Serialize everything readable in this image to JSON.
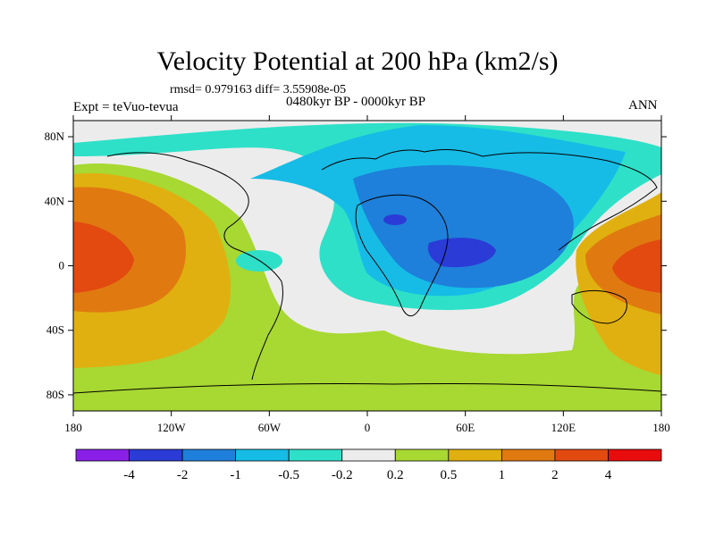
{
  "title": "Velocity Potential at 200 hPa (km2/s)",
  "stats": "rmsd= 0.979163 diff= 3.55908e-05",
  "experiment": "Expt = teVuo-tevua",
  "period": "0480kyr BP - 0000kyr BP",
  "season": "ANN",
  "map": {
    "projection": "cylindrical-equidistant",
    "lon_range": [
      -180,
      180
    ],
    "lat_range": [
      -90,
      90
    ],
    "lat_ticks": [
      {
        "value": 80,
        "label": "80N"
      },
      {
        "value": 40,
        "label": "40N"
      },
      {
        "value": 0,
        "label": "0"
      },
      {
        "value": -40,
        "label": "40S"
      },
      {
        "value": -80,
        "label": "80S"
      }
    ],
    "lon_ticks": [
      {
        "value": -180,
        "label": "180"
      },
      {
        "value": -120,
        "label": "120W"
      },
      {
        "value": -60,
        "label": "60W"
      },
      {
        "value": 0,
        "label": "0"
      },
      {
        "value": 60,
        "label": "60E"
      },
      {
        "value": 120,
        "label": "120E"
      },
      {
        "value": 180,
        "label": "180"
      }
    ],
    "contour_levels": [
      -4,
      -2,
      -1,
      -0.5,
      -0.2,
      0.2,
      0.5,
      1,
      2,
      4
    ],
    "colorbar": {
      "colors": [
        "#8a1fe8",
        "#2b3bd6",
        "#1e80da",
        "#16bce6",
        "#2ee0c8",
        "#ececec",
        "#a8d832",
        "#e0b010",
        "#e07a10",
        "#e24a10",
        "#e80c0c"
      ],
      "labels": [
        "-4",
        "-2",
        "-1",
        "-0.5",
        "-0.2",
        "0.2",
        "0.5",
        "1",
        "2",
        "4"
      ]
    }
  }
}
